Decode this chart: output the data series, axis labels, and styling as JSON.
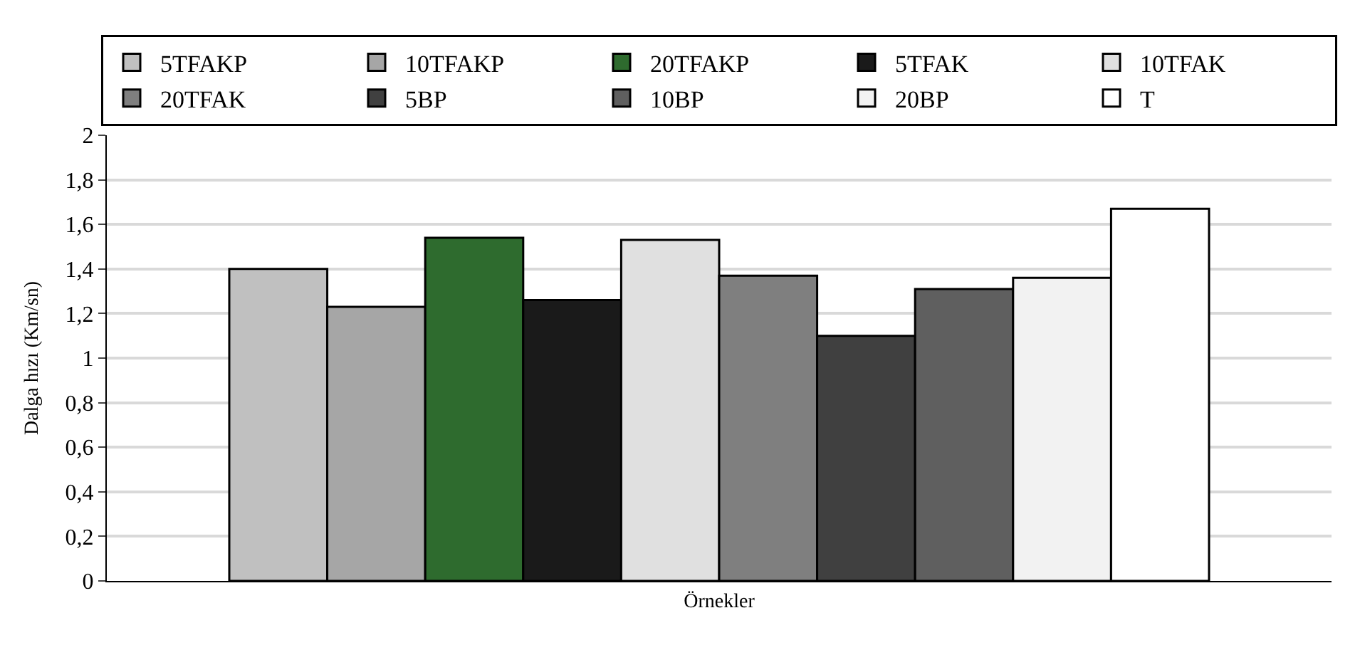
{
  "chart_data": {
    "type": "bar",
    "xlabel": "Örnekler",
    "ylabel": "Dalga hızı (Km/sn)",
    "categories": [
      null
    ],
    "series": [
      {
        "name": "5TFAKP",
        "color": "#c0c0c0",
        "values": [
          1.4
        ]
      },
      {
        "name": "10TFAKP",
        "color": "#a6a6a6",
        "values": [
          1.23
        ]
      },
      {
        "name": "20TFAKP",
        "color": "#2e6b2e",
        "values": [
          1.54
        ]
      },
      {
        "name": "5TFAK",
        "color": "#1a1a1a",
        "values": [
          1.26
        ]
      },
      {
        "name": "10TFAK",
        "color": "#e0e0e0",
        "values": [
          1.53
        ]
      },
      {
        "name": "20TFAK",
        "color": "#7f7f7f",
        "values": [
          1.37
        ]
      },
      {
        "name": "5BP",
        "color": "#404040",
        "values": [
          1.1
        ]
      },
      {
        "name": "10BP",
        "color": "#5f5f5f",
        "values": [
          1.31
        ]
      },
      {
        "name": "20BP",
        "color": "#f2f2f2",
        "values": [
          1.36
        ]
      },
      {
        "name": "T",
        "color": "#ffffff",
        "values": [
          1.67
        ]
      }
    ],
    "ylim": [
      0,
      2
    ],
    "yticks": [
      0,
      {
        "value": 0.2,
        "label": "0,2"
      },
      {
        "value": 0.4,
        "label": "0,4"
      },
      {
        "value": 0.6,
        "label": "0,6"
      },
      {
        "value": 0.8,
        "label": "0,8"
      },
      1,
      {
        "value": 1.2,
        "label": "1,2"
      },
      {
        "value": 1.4,
        "label": "1,4"
      },
      {
        "value": 1.6,
        "label": "1,6"
      },
      {
        "value": 1.8,
        "label": "1,8"
      },
      2
    ],
    "grid": "y",
    "legend": "top"
  }
}
